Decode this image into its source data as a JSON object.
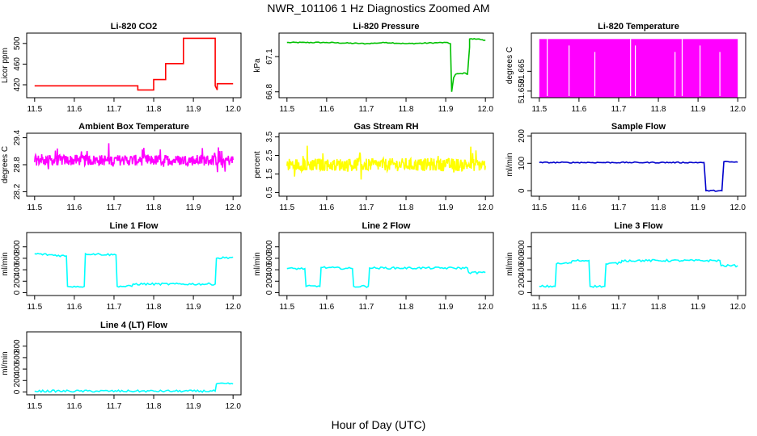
{
  "figure": {
    "title": "NWR_101106  1 Hz Diagnostics Zoomed AM",
    "xlabel": "Hour of Day (UTC)"
  },
  "chart_data": [
    {
      "type": "line",
      "title": "Li-820 CO2",
      "ylabel": "Licor ppm",
      "color": "#ff0000",
      "xlim": [
        11.5,
        12.0
      ],
      "ylim": [
        395,
        520
      ],
      "xticks": [
        "11.5",
        "11.6",
        "11.7",
        "11.8",
        "11.9",
        "12.0"
      ],
      "yticks": [
        "420",
        "460",
        "500"
      ],
      "series": [
        {
          "x": [
            11.5,
            11.76,
            11.76,
            11.8,
            11.8,
            11.83,
            11.83,
            11.875,
            11.875,
            11.955,
            11.955,
            11.96,
            11.96,
            12.0
          ],
          "values": [
            418,
            418,
            410,
            410,
            430,
            430,
            461,
            461,
            510,
            510,
            418,
            410,
            422,
            422
          ]
        }
      ]
    },
    {
      "type": "line",
      "title": "Li-820 Pressure",
      "ylabel": "kPa",
      "color": "#00c000",
      "xlim": [
        11.5,
        12.0
      ],
      "ylim": [
        66.75,
        67.3
      ],
      "xticks": [
        "11.5",
        "11.6",
        "11.7",
        "11.8",
        "11.9",
        "12.0"
      ],
      "yticks": [
        "66.8",
        "67.1"
      ],
      "series": [
        {
          "x": [
            11.5,
            11.6,
            11.7,
            11.75,
            11.8,
            11.9,
            11.912,
            11.915,
            11.92,
            11.925,
            11.95,
            11.955,
            11.96,
            11.96,
            11.98,
            12.0
          ],
          "values": [
            67.22,
            67.22,
            67.21,
            67.22,
            67.21,
            67.22,
            67.21,
            66.8,
            66.92,
            66.95,
            66.96,
            66.95,
            67.18,
            67.25,
            67.25,
            67.24
          ]
        }
      ]
    },
    {
      "type": "area",
      "title": "Li-820 Temperature",
      "ylabel": "degrees C",
      "color": "#ff00ff",
      "xlim": [
        11.5,
        12.0
      ],
      "ylim": [
        51.645,
        51.694
      ],
      "xticks": [
        "11.5",
        "11.6",
        "11.7",
        "11.8",
        "11.9",
        "12.0"
      ],
      "yticks": [
        "51.650",
        "51.665"
      ],
      "series": [
        {
          "x": [
            11.5,
            12.0
          ],
          "values": [
            51.6895,
            51.6895
          ]
        }
      ]
    },
    {
      "type": "line",
      "title": "Ambient Box Temperature",
      "ylabel": "degrees C",
      "color": "#ff00ff",
      "xlim": [
        11.5,
        12.0
      ],
      "ylim": [
        28.1,
        29.5
      ],
      "xticks": [
        "11.5",
        "11.6",
        "11.7",
        "11.8",
        "11.9",
        "12.0"
      ],
      "yticks": [
        "28.2",
        "28.8",
        "29.4"
      ],
      "series": [
        {
          "x": [
            11.5,
            11.6,
            11.7,
            11.8,
            11.9,
            12.0
          ],
          "values": [
            28.9,
            28.85,
            28.9,
            28.85,
            28.9,
            28.9
          ]
        }
      ]
    },
    {
      "type": "line",
      "title": "Gas Stream RH",
      "ylabel": "percent",
      "color": "#ffff00",
      "xlim": [
        11.5,
        12.0
      ],
      "ylim": [
        0.3,
        3.7
      ],
      "xticks": [
        "11.5",
        "11.6",
        "11.7",
        "11.8",
        "11.9",
        "12.0"
      ],
      "yticks": [
        "0.5",
        "1.5",
        "2.5",
        "3.5"
      ],
      "series": [
        {
          "x": [
            11.5,
            11.6,
            11.7,
            11.8,
            11.9,
            12.0
          ],
          "values": [
            2.0,
            2.0,
            2.0,
            2.0,
            2.0,
            2.0
          ]
        }
      ]
    },
    {
      "type": "line",
      "title": "Sample Flow",
      "ylabel": "ml/min",
      "color": "#0000cc",
      "xlim": [
        11.5,
        12.0
      ],
      "ylim": [
        -20,
        210
      ],
      "xticks": [
        "11.5",
        "11.6",
        "11.7",
        "11.8",
        "11.9",
        "12.0"
      ],
      "yticks": [
        "0",
        "100",
        "200"
      ],
      "series": [
        {
          "x": [
            11.5,
            11.915,
            11.92,
            11.955,
            11.96,
            11.965,
            12.0
          ],
          "values": [
            103,
            103,
            0,
            0,
            0,
            106,
            104
          ]
        }
      ]
    },
    {
      "type": "line",
      "title": "Line 1 Flow",
      "ylabel": "ml/min",
      "color": "#00ffff",
      "xlim": [
        11.5,
        12.0
      ],
      "ylim": [
        -50,
        1050
      ],
      "xticks": [
        "11.5",
        "11.6",
        "11.7",
        "11.8",
        "11.9",
        "12.0"
      ],
      "yticks": [
        "0",
        "200",
        "400",
        "600",
        "800"
      ],
      "series": [
        {
          "x": [
            11.5,
            11.58,
            11.583,
            11.625,
            11.628,
            11.705,
            11.708,
            11.745,
            11.748,
            11.955,
            11.958,
            12.0
          ],
          "values": [
            680,
            640,
            110,
            110,
            680,
            660,
            110,
            110,
            150,
            150,
            600,
            620
          ]
        }
      ]
    },
    {
      "type": "line",
      "title": "Line 2 Flow",
      "ylabel": "ml/min",
      "color": "#00ffff",
      "xlim": [
        11.5,
        12.0
      ],
      "ylim": [
        -50,
        1050
      ],
      "xticks": [
        "11.5",
        "11.6",
        "11.7",
        "11.8",
        "11.9",
        "12.0"
      ],
      "yticks": [
        "0",
        "200",
        "400",
        "600",
        "800"
      ],
      "series": [
        {
          "x": [
            11.5,
            11.545,
            11.548,
            11.583,
            11.586,
            11.665,
            11.668,
            11.705,
            11.708,
            11.955,
            11.958,
            12.0
          ],
          "values": [
            420,
            420,
            110,
            110,
            440,
            420,
            110,
            110,
            430,
            430,
            350,
            350
          ]
        }
      ]
    },
    {
      "type": "line",
      "title": "Line 3 Flow",
      "ylabel": "ml/min",
      "color": "#00ffff",
      "xlim": [
        11.5,
        12.0
      ],
      "ylim": [
        -50,
        1050
      ],
      "xticks": [
        "11.5",
        "11.6",
        "11.7",
        "11.8",
        "11.9",
        "12.0"
      ],
      "yticks": [
        "0",
        "200",
        "400",
        "600",
        "800"
      ],
      "series": [
        {
          "x": [
            11.5,
            11.54,
            11.543,
            11.58,
            11.585,
            11.625,
            11.628,
            11.665,
            11.668,
            11.705,
            11.708,
            11.955,
            11.958,
            12.0
          ],
          "values": [
            110,
            110,
            500,
            520,
            560,
            560,
            110,
            110,
            500,
            520,
            560,
            560,
            470,
            470
          ]
        }
      ]
    },
    {
      "type": "line",
      "title": "Line 4 (LT) Flow",
      "ylabel": "ml/min",
      "color": "#00ffff",
      "xlim": [
        11.5,
        12.0
      ],
      "ylim": [
        -50,
        1050
      ],
      "xticks": [
        "11.5",
        "11.6",
        "11.7",
        "11.8",
        "11.9",
        "12.0"
      ],
      "yticks": [
        "0",
        "200",
        "400",
        "600",
        "800"
      ],
      "series": [
        {
          "x": [
            11.5,
            11.955,
            11.958,
            12.0
          ],
          "values": [
            15,
            15,
            140,
            140
          ]
        }
      ]
    }
  ]
}
